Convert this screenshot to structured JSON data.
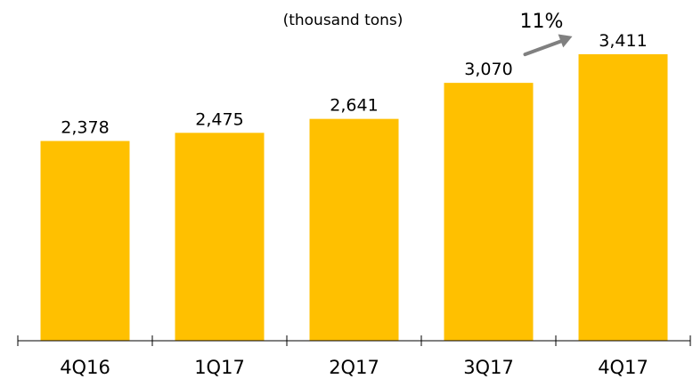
{
  "chart_data": {
    "type": "bar",
    "unit_label": "(thousand tons)",
    "categories": [
      "4Q16",
      "1Q17",
      "2Q17",
      "3Q17",
      "4Q17"
    ],
    "values": [
      2378,
      2475,
      2641,
      3070,
      3411
    ],
    "value_labels": [
      "2,378",
      "2,475",
      "2,641",
      "3,070",
      "3,411"
    ],
    "annotation": {
      "text": "11%",
      "from_category": "3Q17",
      "to_category": "4Q17"
    },
    "grid": false,
    "legend": "none"
  },
  "colors": {
    "bar": "#FFC000",
    "axis": "#000000",
    "arrow": "#808080"
  }
}
